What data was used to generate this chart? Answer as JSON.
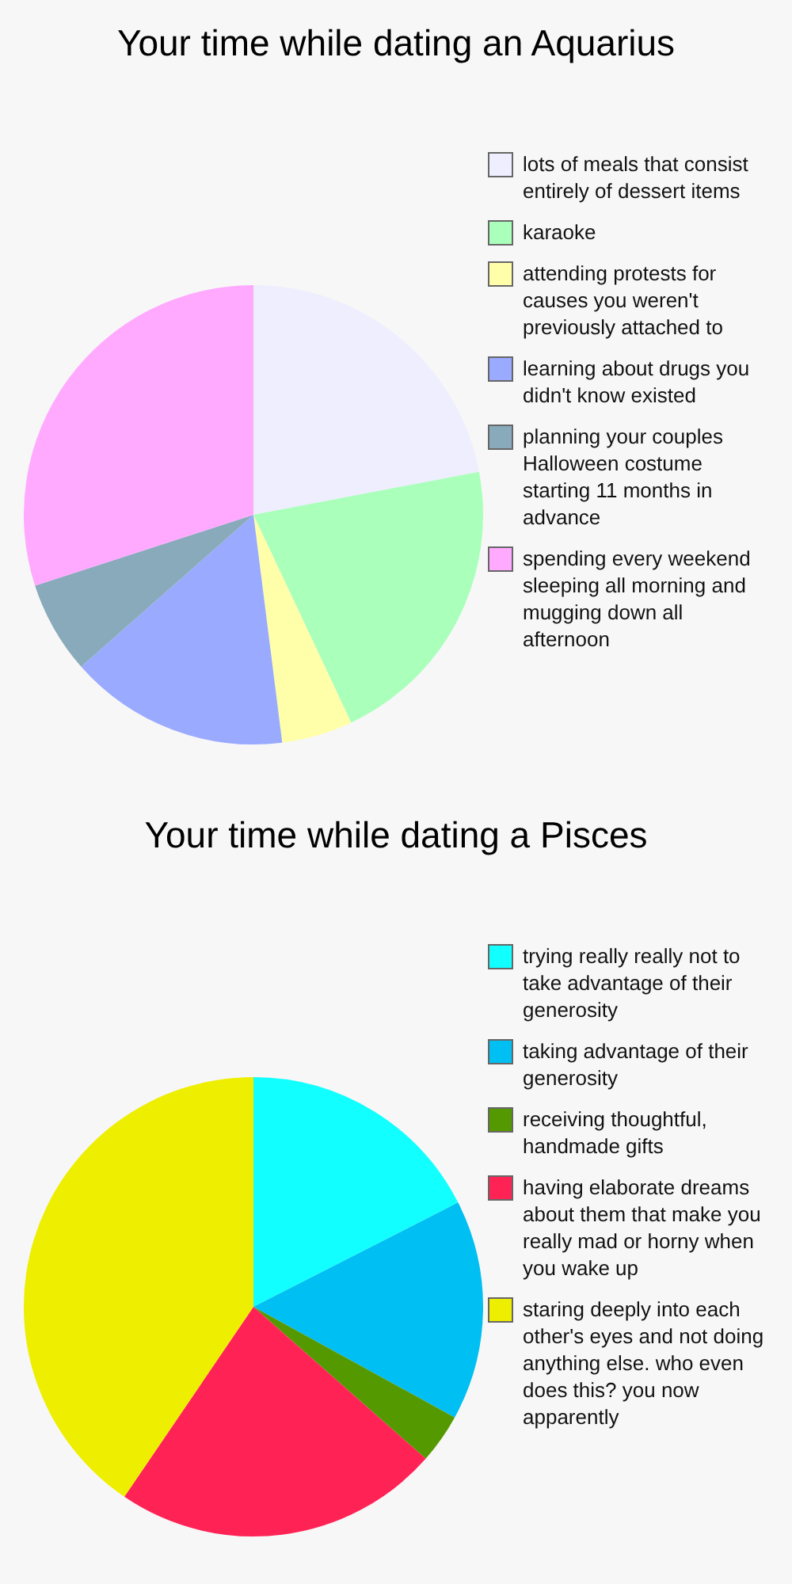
{
  "chart_data": [
    {
      "type": "pie",
      "title": "Your time while dating an Aquarius",
      "legend": "right",
      "categories": [
        "lots of meals that consist entirely of dessert items",
        "karaoke",
        "attending protests for causes you weren't previously attached to",
        "learning about drugs you didn't know existed",
        "planning your couples Halloween costume starting 11 months in advance",
        "spending every weekend sleeping all morning and mugging down all afternoon"
      ],
      "values": [
        22,
        21,
        5,
        15.5,
        6.5,
        30
      ],
      "colors": [
        "#eeeefe",
        "#aaffbb",
        "#ffffaa",
        "#99aaff",
        "#88aabb",
        "#ffaaff"
      ]
    },
    {
      "type": "pie",
      "title": "Your time while dating a Pisces",
      "legend": "right",
      "categories": [
        "trying really really not to take advantage of their generosity",
        "taking advantage of their generosity",
        "receiving thoughtful, handmade gifts",
        "having elaborate dreams about them that make you really mad or horny when you wake up",
        "staring deeply into each other's eyes and not doing anything else. who even does this? you now apparently"
      ],
      "values": [
        17.5,
        15.5,
        3.5,
        23,
        40.5
      ],
      "colors": [
        "#11ffff",
        "#00bff2",
        "#559900",
        "#ff2255",
        "#eeee00"
      ]
    }
  ]
}
